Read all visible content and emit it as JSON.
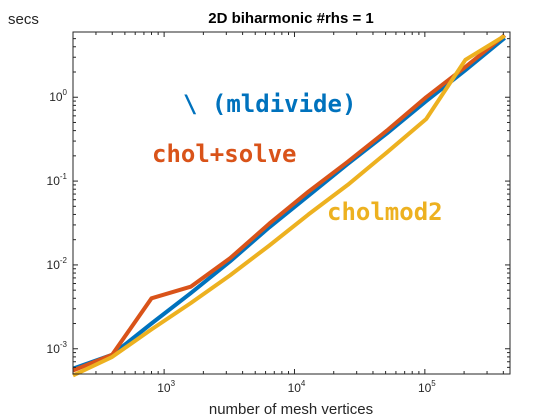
{
  "chart_data": {
    "type": "line",
    "title": "2D biharmonic #rhs = 1",
    "xlabel": "number of mesh vertices",
    "ylabel": "secs",
    "xscale": "log",
    "yscale": "log",
    "xlim": [
      200,
      450000
    ],
    "ylim": [
      0.0005,
      6
    ],
    "x_ticks": [
      {
        "value": 1000,
        "base": "10",
        "exp": "3"
      },
      {
        "value": 10000,
        "base": "10",
        "exp": "4"
      },
      {
        "value": 100000,
        "base": "10",
        "exp": "5"
      }
    ],
    "y_ticks": [
      {
        "value": 0.001,
        "base": "10",
        "exp": "-3"
      },
      {
        "value": 0.01,
        "base": "10",
        "exp": "-2"
      },
      {
        "value": 0.1,
        "base": "10",
        "exp": "-1"
      },
      {
        "value": 1,
        "base": "10",
        "exp": "0"
      }
    ],
    "grid": false,
    "legend": "none",
    "series": [
      {
        "name": "\\ (mldivide)",
        "color": "#0072BD",
        "x": [
          200,
          400,
          800,
          1600,
          3200,
          6400,
          12800,
          25600,
          51200,
          102400,
          204800,
          409600
        ],
        "y": [
          0.00058,
          0.00085,
          0.002,
          0.0046,
          0.011,
          0.028,
          0.067,
          0.16,
          0.37,
          0.9,
          2.1,
          5.1
        ]
      },
      {
        "name": "chol+solve",
        "color": "#D95319",
        "x": [
          200,
          400,
          800,
          1600,
          3200,
          6400,
          12800,
          25600,
          51200,
          102400,
          204800,
          409600
        ],
        "y": [
          0.00055,
          0.00085,
          0.004,
          0.0055,
          0.012,
          0.031,
          0.075,
          0.17,
          0.4,
          1.0,
          2.3,
          5.5
        ]
      },
      {
        "name": "cholmod2",
        "color": "#EDB120",
        "x": [
          200,
          400,
          800,
          1600,
          3200,
          6400,
          12800,
          25600,
          51200,
          102400,
          204800,
          409600
        ],
        "y": [
          0.00048,
          0.0008,
          0.0017,
          0.0035,
          0.0075,
          0.017,
          0.04,
          0.09,
          0.22,
          0.55,
          2.8,
          5.4
        ]
      }
    ],
    "annotations": [
      {
        "text": "\\ (mldivide)",
        "color": "#0072BD",
        "series": 0
      },
      {
        "text": "chol+solve",
        "color": "#D95319",
        "series": 1
      },
      {
        "text": "cholmod2",
        "color": "#EDB120",
        "series": 2
      }
    ]
  }
}
